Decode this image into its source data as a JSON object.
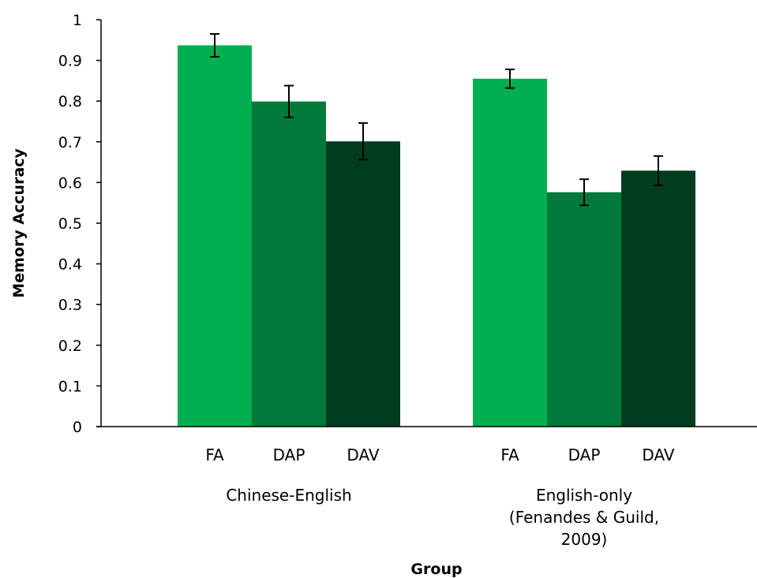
{
  "chart_data": {
    "type": "bar",
    "title": "",
    "xlabel": "Group",
    "ylabel": "Memory Accuracy",
    "ylim": [
      0,
      1
    ],
    "yticks": [
      "0",
      "0.1",
      "0.2",
      "0.3",
      "0.4",
      "0.5",
      "0.6",
      "0.7",
      "0.8",
      "0.9",
      "1"
    ],
    "grid": false,
    "legend": "none",
    "groups": [
      {
        "label_lines": [
          "Chinese-English"
        ],
        "bars": [
          {
            "category": "FA",
            "value": 0.937,
            "error": 0.028,
            "color": "#00b050"
          },
          {
            "category": "DAP",
            "value": 0.799,
            "error": 0.039,
            "color": "#007a3a"
          },
          {
            "category": "DAV",
            "value": 0.701,
            "error": 0.045,
            "color": "#003d1e"
          }
        ]
      },
      {
        "label_lines": [
          "English-only",
          "(Fenandes & Guild,",
          "2009)"
        ],
        "bars": [
          {
            "category": "FA",
            "value": 0.855,
            "error": 0.023,
            "color": "#00b050"
          },
          {
            "category": "DAP",
            "value": 0.576,
            "error": 0.032,
            "color": "#007a3a"
          },
          {
            "category": "DAV",
            "value": 0.629,
            "error": 0.036,
            "color": "#003d1e"
          }
        ]
      }
    ]
  }
}
